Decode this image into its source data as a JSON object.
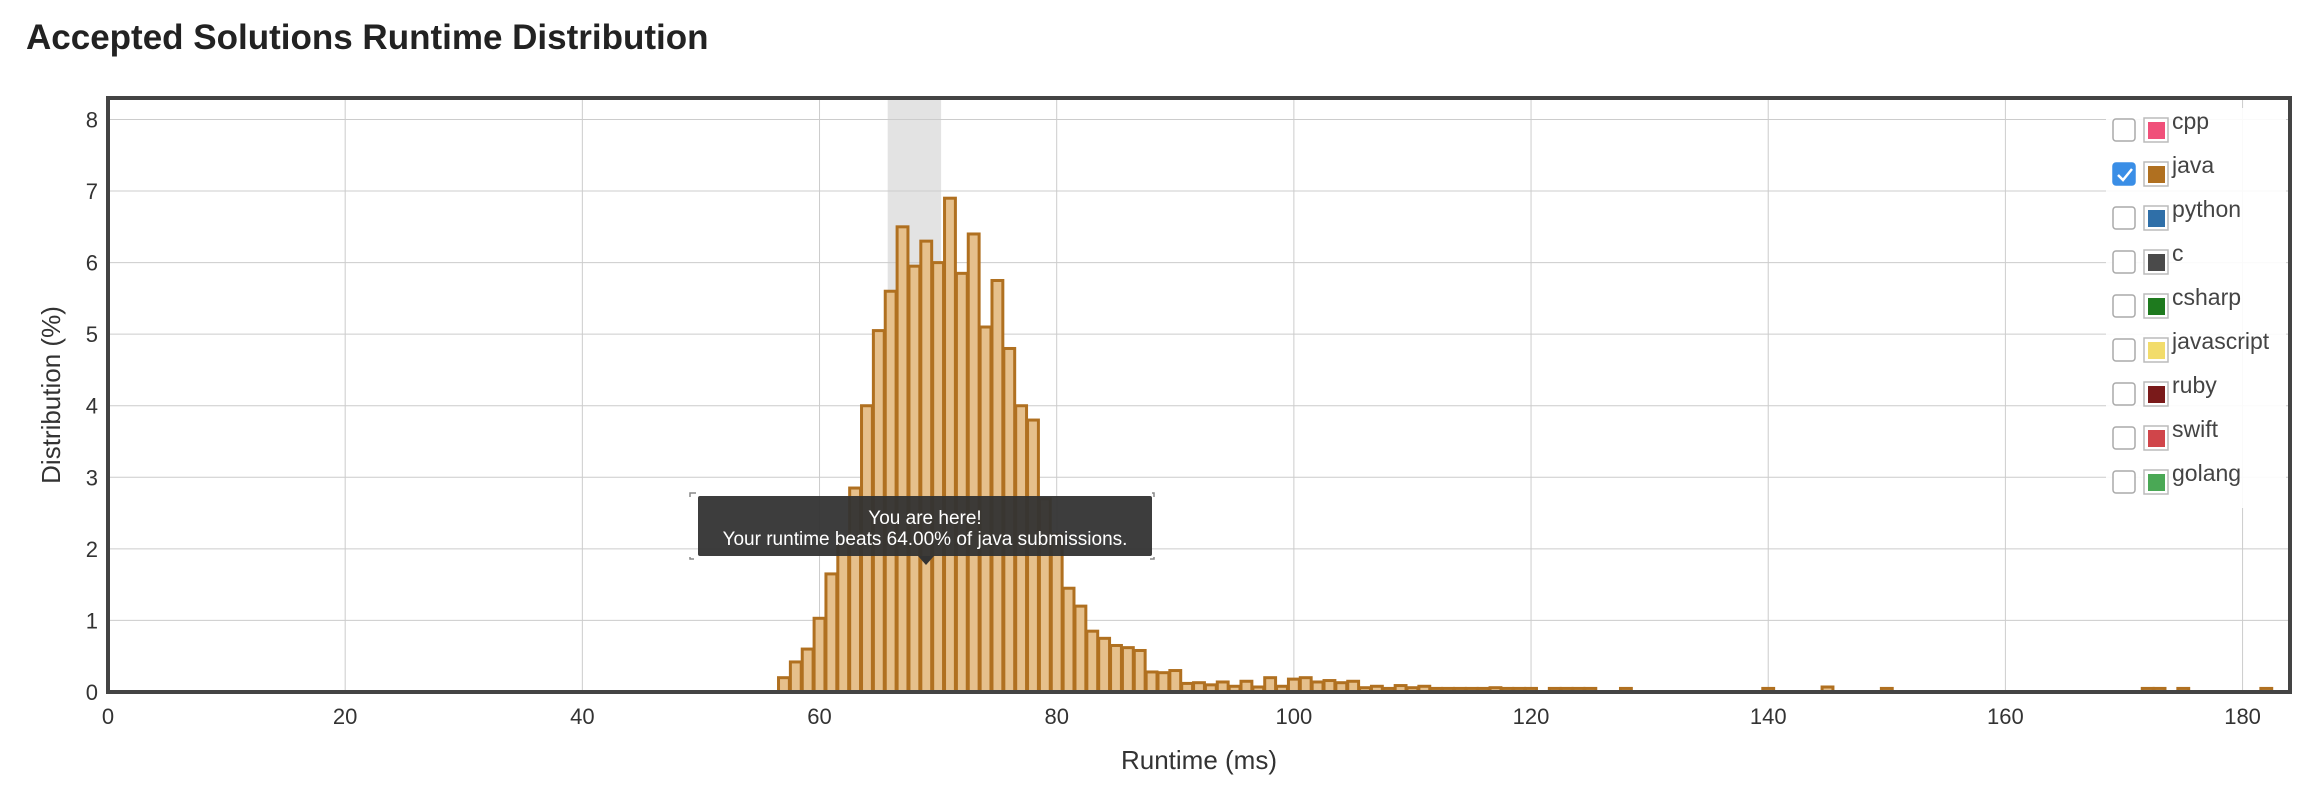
{
  "title": "Accepted Solutions Runtime Distribution",
  "tooltip": {
    "line1": "You are here!",
    "line2": "Your runtime beats 64.00% of java submissions."
  },
  "legend": [
    {
      "name": "cpp",
      "color": "#f0507a",
      "checked": false
    },
    {
      "name": "java",
      "color": "#b07020",
      "checked": true
    },
    {
      "name": "python",
      "color": "#2f6fa8",
      "checked": false
    },
    {
      "name": "c",
      "color": "#4a4a4a",
      "checked": false
    },
    {
      "name": "csharp",
      "color": "#1e7a1e",
      "checked": false
    },
    {
      "name": "javascript",
      "color": "#f2dc6b",
      "checked": false
    },
    {
      "name": "ruby",
      "color": "#7a1a1a",
      "checked": false
    },
    {
      "name": "swift",
      "color": "#d0454a",
      "checked": false
    },
    {
      "name": "golang",
      "color": "#4aa855",
      "checked": false
    }
  ],
  "colors": {
    "bar_fill": "#e6c08c",
    "bar_stroke": "#b07020",
    "highlight_band": "#e3e3e3",
    "grid": "#cccccc",
    "frame": "#444444",
    "tooltip_bg": "#333333",
    "checkbox_checked": "#3a8ee6"
  },
  "chart_data": {
    "type": "bar",
    "title": "Accepted Solutions Runtime Distribution",
    "xlabel": "Runtime (ms)",
    "ylabel": "Distribution (%)",
    "xlim": [
      0,
      184
    ],
    "ylim": [
      0,
      8.3
    ],
    "x_ticks": [
      0,
      20,
      40,
      60,
      80,
      100,
      120,
      140,
      160,
      180
    ],
    "y_ticks": [
      0,
      1,
      2,
      3,
      4,
      5,
      6,
      7,
      8
    ],
    "grid": true,
    "legend_position": "top-right",
    "series": [
      {
        "name": "java"
      }
    ],
    "bin_width": 1,
    "highlight_range": [
      66,
      70
    ],
    "x": [
      57,
      58,
      59,
      60,
      61,
      62,
      63,
      64,
      65,
      66,
      67,
      68,
      69,
      70,
      71,
      72,
      73,
      74,
      75,
      76,
      77,
      78,
      79,
      80,
      81,
      82,
      83,
      84,
      85,
      86,
      87,
      88,
      89,
      90,
      91,
      92,
      93,
      94,
      95,
      96,
      97,
      98,
      99,
      100,
      101,
      102,
      103,
      104,
      105,
      106,
      107,
      108,
      109,
      110,
      111,
      112,
      113,
      114,
      115,
      116,
      117,
      118,
      119,
      120,
      122,
      123,
      124,
      125,
      128,
      140,
      145,
      150,
      172,
      173,
      175,
      182
    ],
    "values": [
      0.2,
      0.42,
      0.6,
      1.03,
      1.65,
      2.1,
      2.85,
      4.0,
      5.05,
      5.6,
      6.5,
      5.95,
      6.3,
      6.0,
      6.9,
      5.85,
      6.4,
      5.1,
      5.75,
      4.8,
      4.0,
      3.8,
      2.7,
      2.2,
      1.45,
      1.2,
      0.85,
      0.75,
      0.65,
      0.62,
      0.58,
      0.28,
      0.27,
      0.3,
      0.12,
      0.13,
      0.1,
      0.14,
      0.08,
      0.15,
      0.07,
      0.2,
      0.08,
      0.18,
      0.2,
      0.14,
      0.16,
      0.13,
      0.15,
      0.06,
      0.08,
      0.05,
      0.09,
      0.06,
      0.08,
      0.05,
      0.05,
      0.05,
      0.05,
      0.05,
      0.06,
      0.05,
      0.05,
      0.05,
      0.05,
      0.05,
      0.05,
      0.05,
      0.05,
      0.05,
      0.07,
      0.05,
      0.05,
      0.05,
      0.05,
      0.05
    ]
  }
}
